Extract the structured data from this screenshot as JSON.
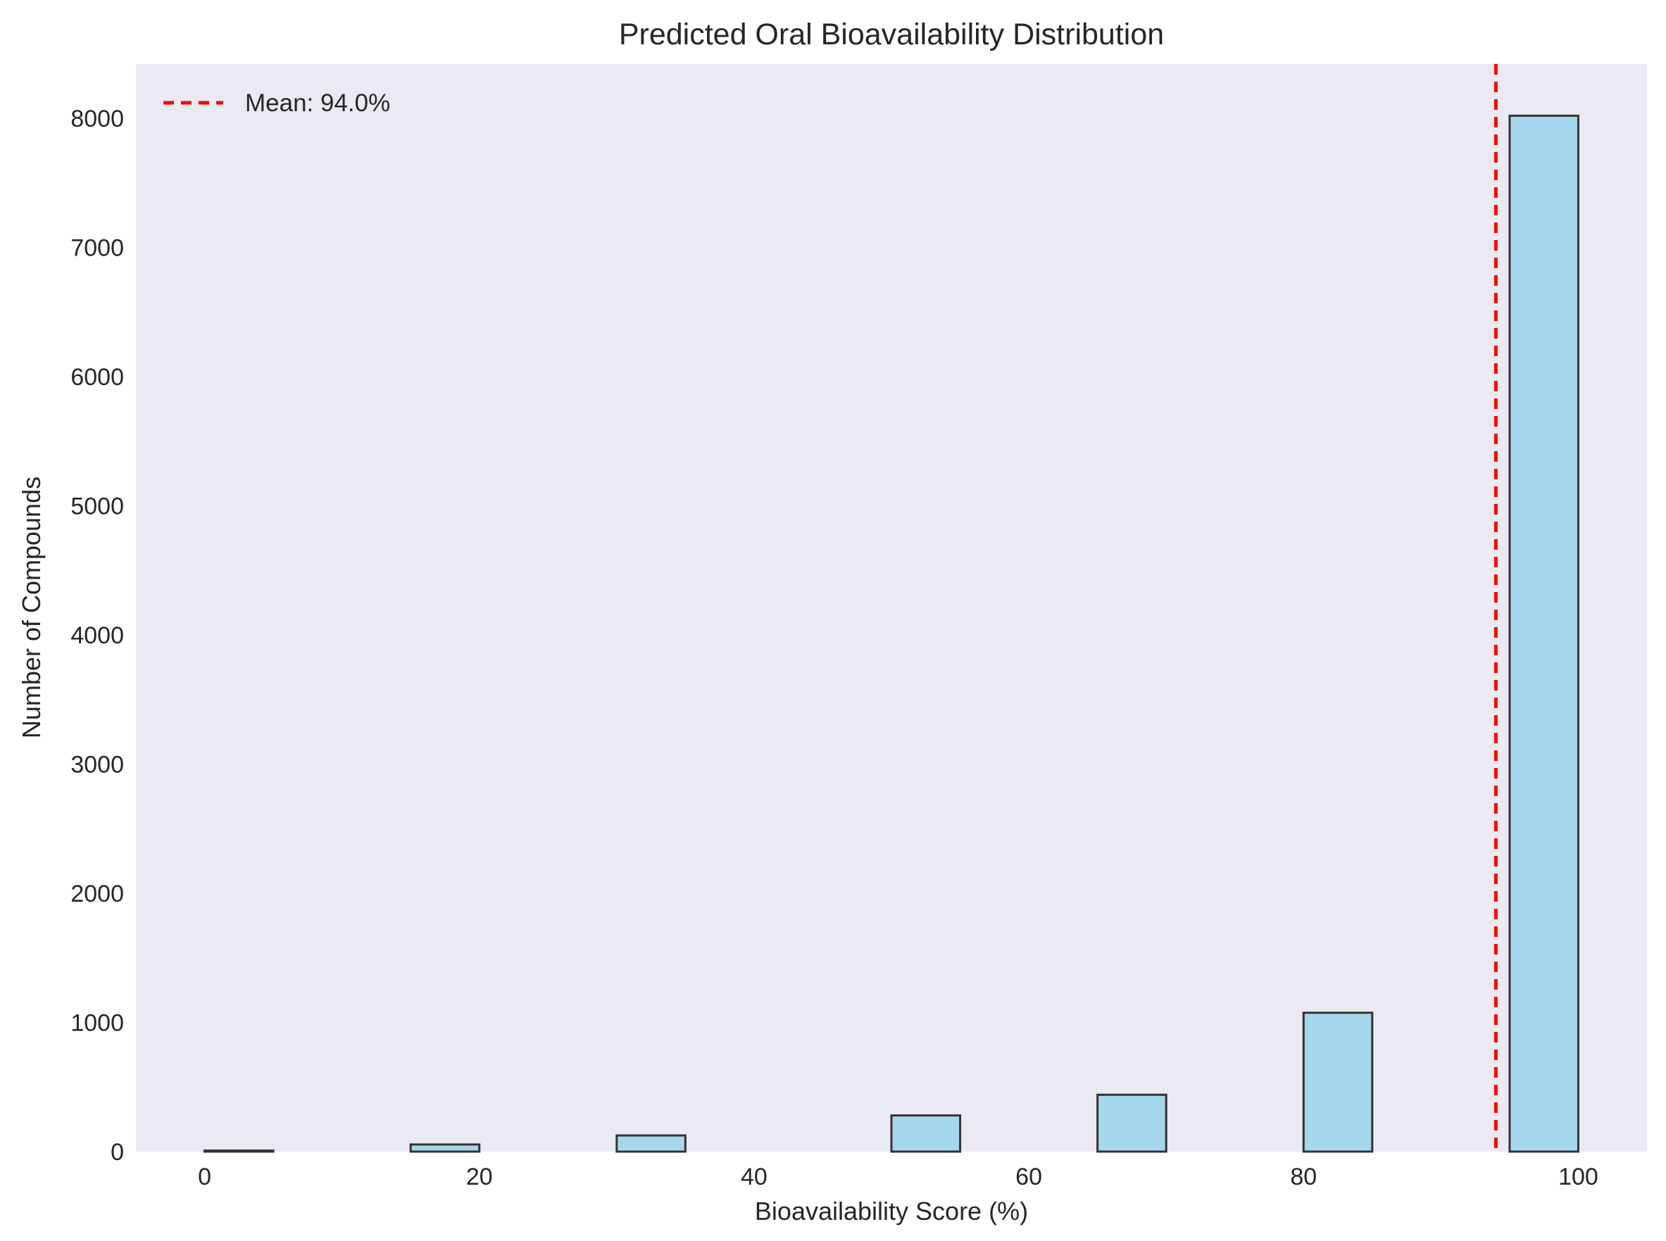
{
  "chart_data": {
    "type": "bar",
    "subtype": "histogram",
    "title": "Predicted Oral Bioavailability Distribution",
    "xlabel": "Bioavailability Score (%)",
    "ylabel": "Number of Compounds",
    "xlim": [
      -5,
      105
    ],
    "ylim": [
      0,
      8420
    ],
    "x_ticks": [
      0,
      20,
      40,
      60,
      80,
      100
    ],
    "y_ticks": [
      0,
      1000,
      2000,
      3000,
      4000,
      5000,
      6000,
      7000,
      8000
    ],
    "grid": false,
    "bins": [
      {
        "x0": 0,
        "x1": 5,
        "count": 8
      },
      {
        "x0": 15,
        "x1": 20,
        "count": 55
      },
      {
        "x0": 30,
        "x1": 35,
        "count": 125
      },
      {
        "x0": 50,
        "x1": 55,
        "count": 280
      },
      {
        "x0": 65,
        "x1": 70,
        "count": 440
      },
      {
        "x0": 80,
        "x1": 85,
        "count": 1075
      },
      {
        "x0": 95,
        "x1": 100,
        "count": 8020
      }
    ],
    "mean_line": {
      "value": 94.0,
      "label": "Mean: 94.0%"
    },
    "legend": {
      "position": "top-left",
      "entries": [
        "Mean: 94.0%"
      ]
    },
    "colors": {
      "bar_fill": "#87ceeb",
      "bar_edge": "#333333",
      "mean_line": "#ff0000",
      "plot_background": "#eaeaf2",
      "text": "#262626"
    }
  }
}
